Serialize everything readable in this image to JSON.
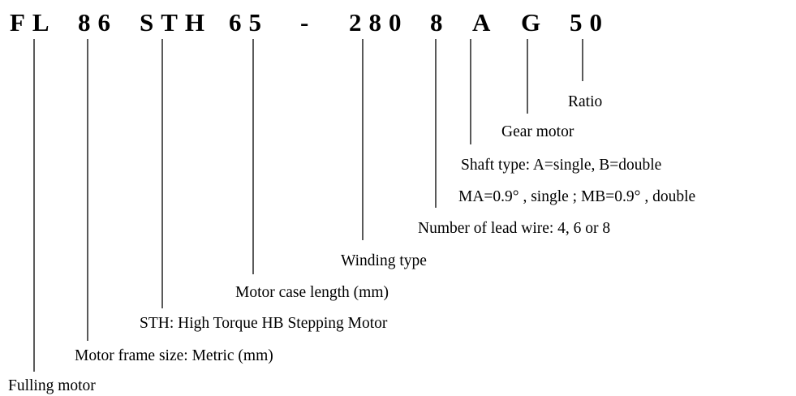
{
  "code": [
    "FL",
    "86",
    "STH",
    "65",
    "-",
    "280",
    "8",
    "A",
    "G",
    "50"
  ],
  "labels": [
    "Ratio",
    "Gear motor",
    "Shaft type: A=single, B=double",
    "MA=0.9°  , single ; MB=0.9°  , double",
    "Number of lead wire: 4, 6 or 8",
    "Winding type",
    "Motor case length (mm)",
    "STH: High Torque HB Stepping Motor",
    "Motor frame size: Metric (mm)",
    "Fulling motor"
  ]
}
